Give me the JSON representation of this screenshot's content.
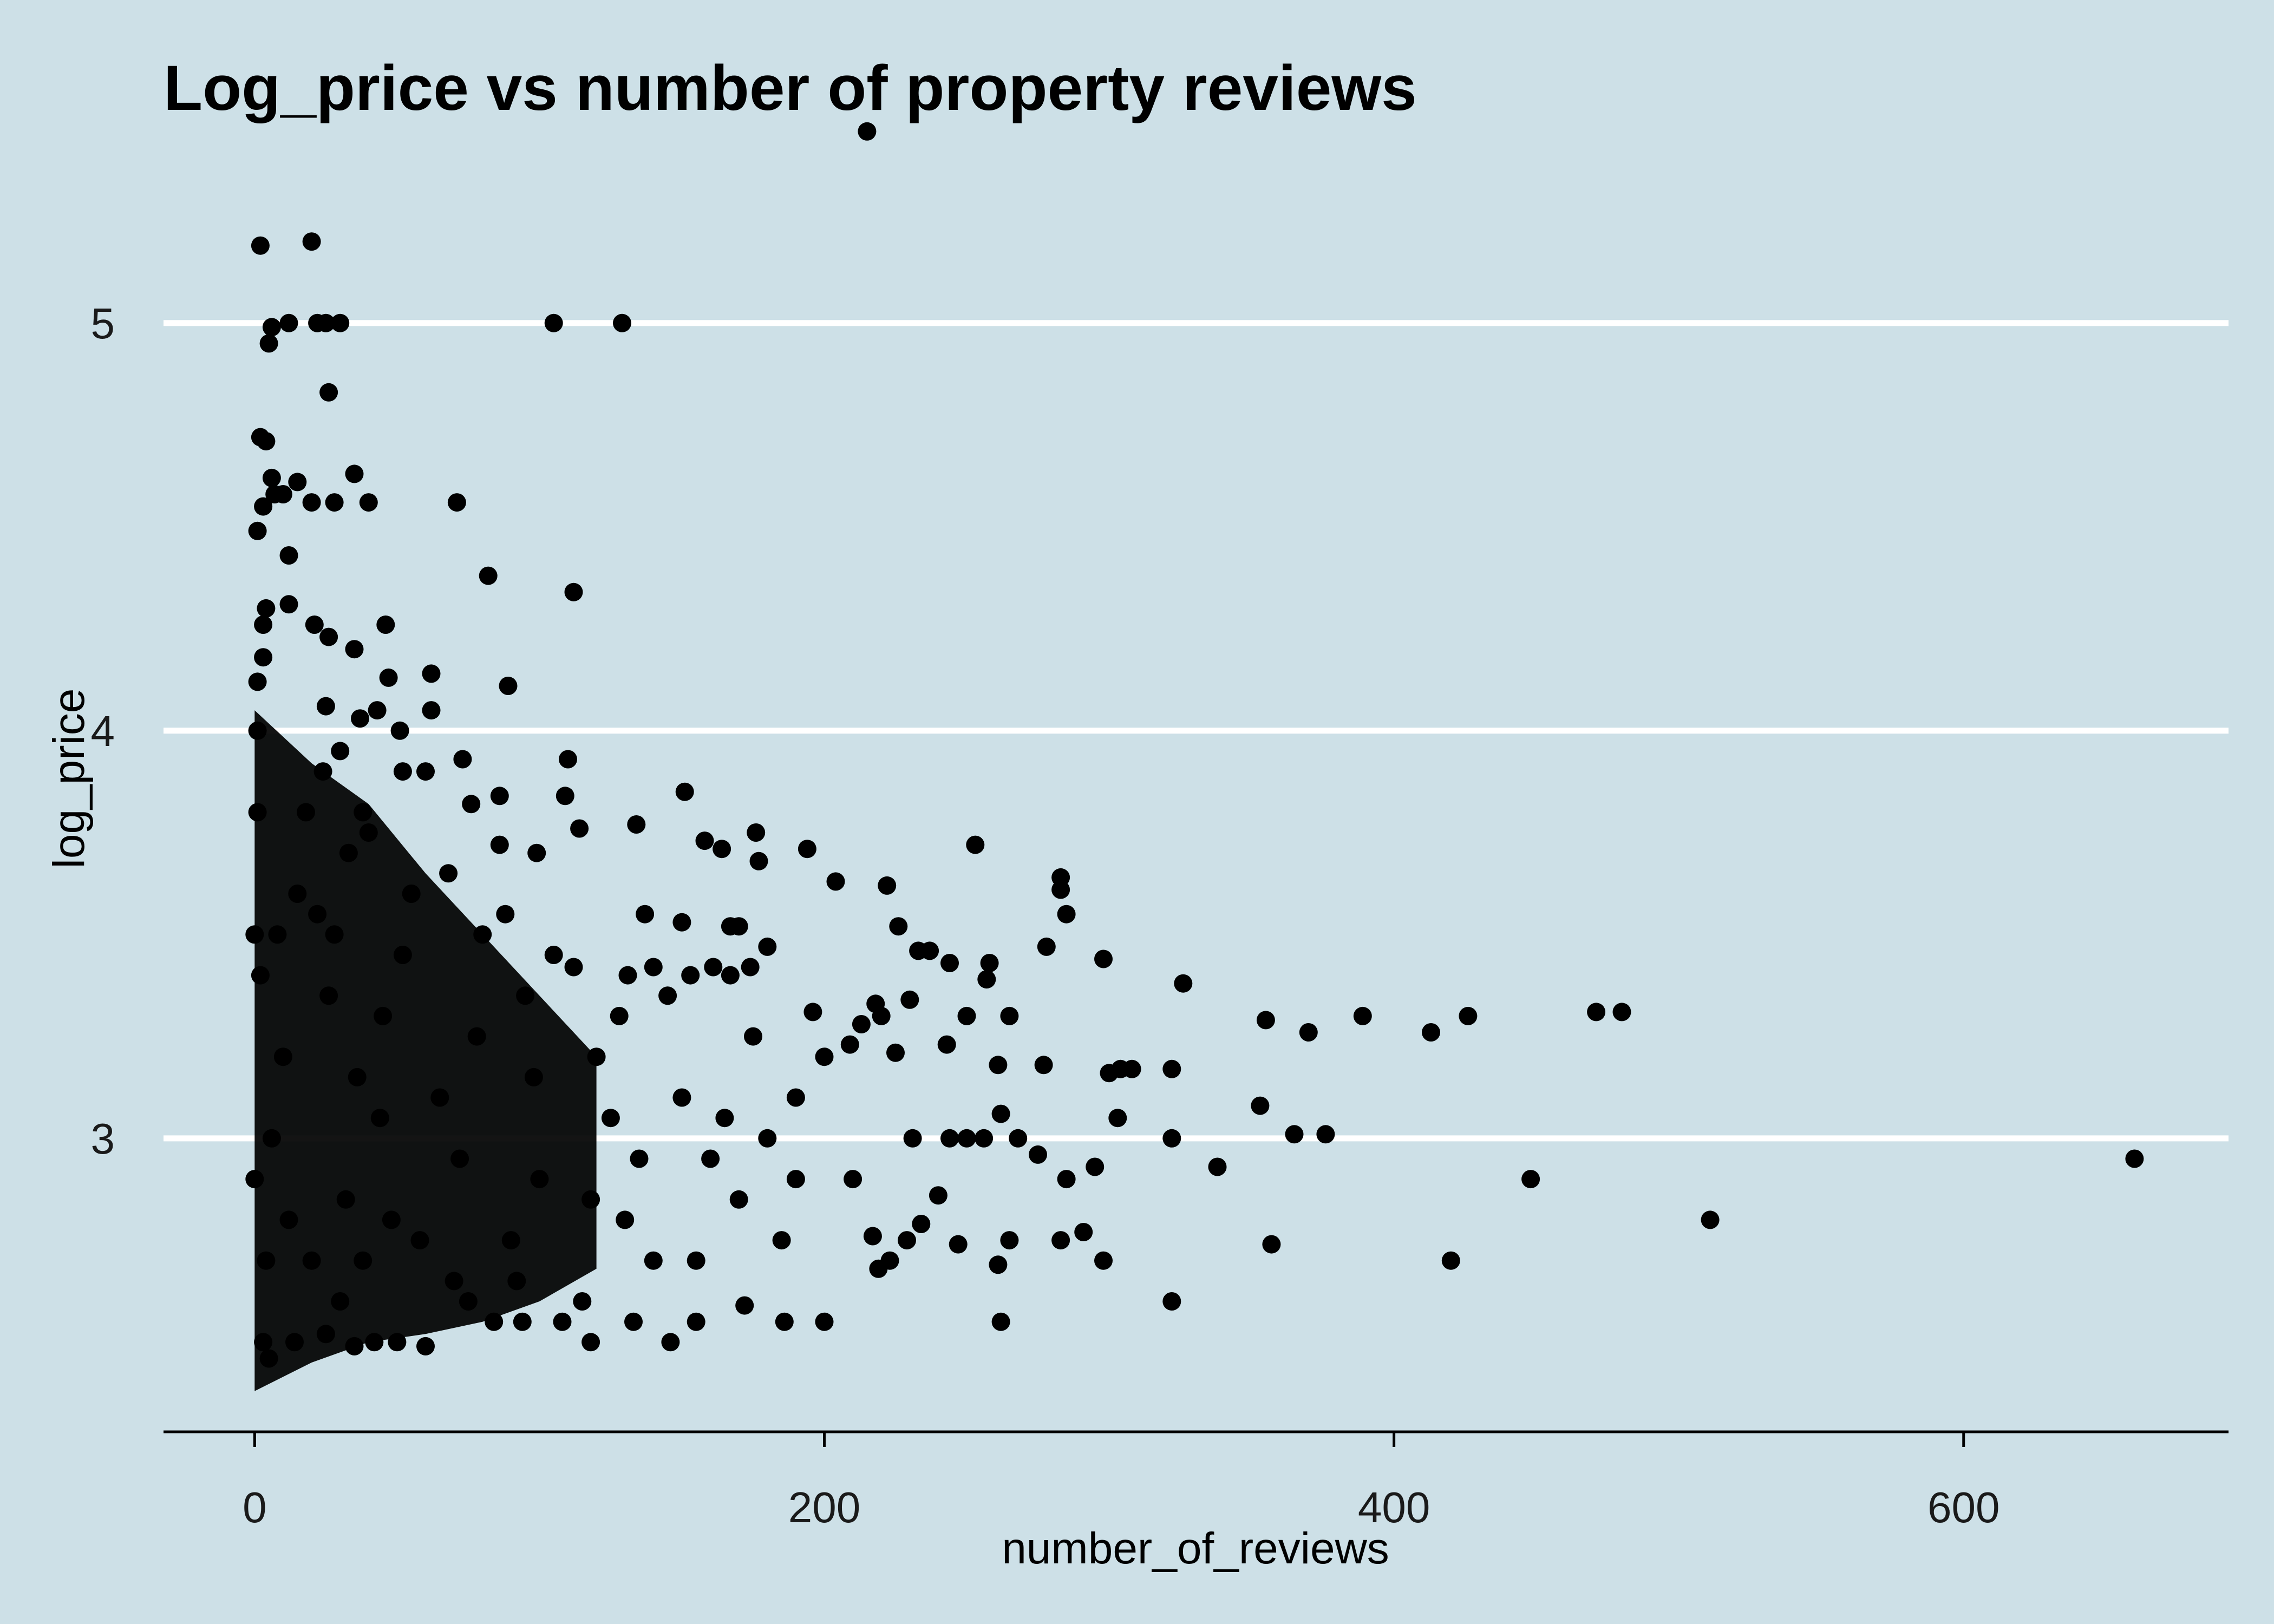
{
  "chart_data": {
    "type": "scatter",
    "title": "Log_price vs number of property reviews",
    "xlabel": "number_of_reviews",
    "ylabel": "log_price",
    "xlim": [
      -32,
      693
    ],
    "ylim": [
      2.28,
      5.58
    ],
    "x_ticks": [
      0,
      200,
      400,
      600
    ],
    "x_tick_labels": [
      "0",
      "200",
      "400",
      "600"
    ],
    "y_ticks": [
      3,
      4,
      5
    ],
    "y_tick_labels": [
      "3",
      "4",
      "5"
    ],
    "grid": "horizontal-major",
    "legend": "none",
    "colors": {
      "background": "#cde0e7",
      "points": "#000000",
      "grid": "#ffffff"
    },
    "points": [
      [
        215,
        5.47
      ],
      [
        2,
        5.19
      ],
      [
        20,
        5.2
      ],
      [
        6,
        4.99
      ],
      [
        12,
        5.0
      ],
      [
        22,
        5.0
      ],
      [
        25,
        5.0
      ],
      [
        30,
        5.0
      ],
      [
        105,
        5.0
      ],
      [
        129,
        5.0
      ],
      [
        5,
        4.95
      ],
      [
        26,
        4.83
      ],
      [
        2,
        4.72
      ],
      [
        4,
        4.71
      ],
      [
        6,
        4.62
      ],
      [
        15,
        4.61
      ],
      [
        35,
        4.63
      ],
      [
        7,
        4.58
      ],
      [
        10,
        4.58
      ],
      [
        20,
        4.56
      ],
      [
        28,
        4.56
      ],
      [
        40,
        4.56
      ],
      [
        71,
        4.56
      ],
      [
        1,
        4.49
      ],
      [
        3,
        4.55
      ],
      [
        12,
        4.43
      ],
      [
        82,
        4.38
      ],
      [
        112,
        4.34
      ],
      [
        12,
        4.31
      ],
      [
        4,
        4.3
      ],
      [
        3,
        4.26
      ],
      [
        21,
        4.26
      ],
      [
        46,
        4.26
      ],
      [
        26,
        4.23
      ],
      [
        35,
        4.2
      ],
      [
        47,
        4.13
      ],
      [
        62,
        4.14
      ],
      [
        89,
        4.11
      ],
      [
        3,
        4.18
      ],
      [
        1,
        4.12
      ],
      [
        25,
        4.06
      ],
      [
        37,
        4.03
      ],
      [
        43,
        4.05
      ],
      [
        62,
        4.05
      ],
      [
        30,
        3.95
      ],
      [
        51,
        4.0
      ],
      [
        73,
        3.93
      ],
      [
        110,
        3.93
      ],
      [
        52,
        3.9
      ],
      [
        60,
        3.9
      ],
      [
        86,
        3.84
      ],
      [
        151,
        3.85
      ],
      [
        109,
        3.84
      ],
      [
        38,
        3.8
      ],
      [
        76,
        3.82
      ],
      [
        134,
        3.77
      ],
      [
        114,
        3.76
      ],
      [
        176,
        3.75
      ],
      [
        158,
        3.73
      ],
      [
        164,
        3.71
      ],
      [
        194,
        3.71
      ],
      [
        253,
        3.72
      ],
      [
        86,
        3.72
      ],
      [
        99,
        3.7
      ],
      [
        177,
        3.68
      ],
      [
        204,
        3.63
      ],
      [
        222,
        3.62
      ],
      [
        283,
        3.64
      ],
      [
        283,
        3.61
      ],
      [
        285,
        3.55
      ],
      [
        137,
        3.55
      ],
      [
        150,
        3.53
      ],
      [
        167,
        3.52
      ],
      [
        170,
        3.52
      ],
      [
        226,
        3.52
      ],
      [
        233,
        3.46
      ],
      [
        278,
        3.47
      ],
      [
        180,
        3.47
      ],
      [
        237,
        3.46
      ],
      [
        258,
        3.43
      ],
      [
        244,
        3.43
      ],
      [
        298,
        3.44
      ],
      [
        112,
        3.42
      ],
      [
        140,
        3.42
      ],
      [
        161,
        3.42
      ],
      [
        174,
        3.42
      ],
      [
        131,
        3.4
      ],
      [
        153,
        3.4
      ],
      [
        167,
        3.4
      ],
      [
        257,
        3.39
      ],
      [
        326,
        3.38
      ],
      [
        230,
        3.34
      ],
      [
        218,
        3.33
      ],
      [
        196,
        3.31
      ],
      [
        355,
        3.29
      ],
      [
        265,
        3.3
      ],
      [
        250,
        3.3
      ],
      [
        220,
        3.3
      ],
      [
        389,
        3.3
      ],
      [
        426,
        3.3
      ],
      [
        471,
        3.31
      ],
      [
        480,
        3.31
      ],
      [
        370,
        3.26
      ],
      [
        413,
        3.26
      ],
      [
        213,
        3.28
      ],
      [
        209,
        3.23
      ],
      [
        243,
        3.23
      ],
      [
        225,
        3.21
      ],
      [
        261,
        3.18
      ],
      [
        277,
        3.18
      ],
      [
        300,
        3.16
      ],
      [
        304,
        3.17
      ],
      [
        308,
        3.17
      ],
      [
        322,
        3.17
      ],
      [
        353,
        3.08
      ],
      [
        303,
        3.05
      ],
      [
        262,
        3.06
      ],
      [
        256,
        3.0
      ],
      [
        250,
        3.0
      ],
      [
        244,
        3.0
      ],
      [
        231,
        3.0
      ],
      [
        322,
        3.0
      ],
      [
        365,
        3.01
      ],
      [
        376,
        3.01
      ],
      [
        338,
        2.93
      ],
      [
        448,
        2.9
      ],
      [
        295,
        2.93
      ],
      [
        285,
        2.9
      ],
      [
        268,
        3.0
      ],
      [
        275,
        2.96
      ],
      [
        660,
        2.95
      ],
      [
        511,
        2.8
      ],
      [
        357,
        2.74
      ],
      [
        420,
        2.7
      ],
      [
        322,
        2.6
      ],
      [
        298,
        2.7
      ],
      [
        291,
        2.77
      ],
      [
        283,
        2.75
      ],
      [
        265,
        2.75
      ],
      [
        261,
        2.69
      ],
      [
        262,
        2.55
      ],
      [
        247,
        2.74
      ],
      [
        240,
        2.86
      ],
      [
        234,
        2.79
      ],
      [
        229,
        2.75
      ],
      [
        223,
        2.7
      ],
      [
        219,
        2.68
      ],
      [
        217,
        2.76
      ],
      [
        200,
        2.55
      ],
      [
        186,
        2.55
      ],
      [
        172,
        2.59
      ],
      [
        155,
        2.55
      ],
      [
        146,
        2.5
      ],
      [
        133,
        2.55
      ],
      [
        118,
        2.5
      ],
      [
        108,
        2.55
      ],
      [
        94,
        2.55
      ],
      [
        84,
        2.55
      ],
      [
        75,
        2.6
      ],
      [
        60,
        2.49
      ],
      [
        50,
        2.5
      ],
      [
        42,
        2.5
      ],
      [
        35,
        2.49
      ],
      [
        25,
        2.52
      ],
      [
        14,
        2.5
      ],
      [
        5,
        2.46
      ],
      [
        3,
        2.5
      ],
      [
        180,
        3.0
      ],
      [
        190,
        2.9
      ],
      [
        170,
        2.85
      ],
      [
        160,
        2.95
      ],
      [
        150,
        3.1
      ],
      [
        140,
        2.7
      ],
      [
        130,
        2.8
      ],
      [
        120,
        3.2
      ],
      [
        125,
        3.05
      ],
      [
        115,
        2.6
      ],
      [
        100,
        2.9
      ],
      [
        95,
        3.35
      ],
      [
        90,
        2.75
      ],
      [
        80,
        3.5
      ],
      [
        70,
        2.65
      ],
      [
        65,
        3.1
      ],
      [
        55,
        3.6
      ],
      [
        48,
        2.8
      ],
      [
        45,
        3.3
      ],
      [
        38,
        2.7
      ],
      [
        33,
        3.7
      ],
      [
        30,
        2.6
      ],
      [
        28,
        3.5
      ],
      [
        24,
        3.9
      ],
      [
        20,
        2.7
      ],
      [
        18,
        3.8
      ],
      [
        15,
        3.6
      ],
      [
        12,
        2.8
      ],
      [
        10,
        3.2
      ],
      [
        8,
        3.5
      ],
      [
        6,
        3.0
      ],
      [
        4,
        2.7
      ],
      [
        2,
        3.4
      ],
      [
        1,
        3.8
      ],
      [
        0,
        2.9
      ],
      [
        0,
        3.5
      ],
      [
        1,
        4.0
      ],
      [
        200,
        3.2
      ],
      [
        210,
        2.9
      ],
      [
        190,
        3.1
      ],
      [
        185,
        2.75
      ],
      [
        175,
        3.25
      ],
      [
        165,
        3.05
      ],
      [
        155,
        2.7
      ],
      [
        145,
        3.35
      ],
      [
        135,
        2.95
      ],
      [
        128,
        3.3
      ],
      [
        118,
        2.85
      ],
      [
        105,
        3.45
      ],
      [
        98,
        3.15
      ],
      [
        92,
        2.65
      ],
      [
        88,
        3.55
      ],
      [
        78,
        3.25
      ],
      [
        72,
        2.95
      ],
      [
        68,
        3.65
      ],
      [
        58,
        2.75
      ],
      [
        52,
        3.45
      ],
      [
        44,
        3.05
      ],
      [
        40,
        3.75
      ],
      [
        36,
        3.15
      ],
      [
        32,
        2.85
      ],
      [
        26,
        3.35
      ],
      [
        22,
        3.55
      ]
    ]
  }
}
